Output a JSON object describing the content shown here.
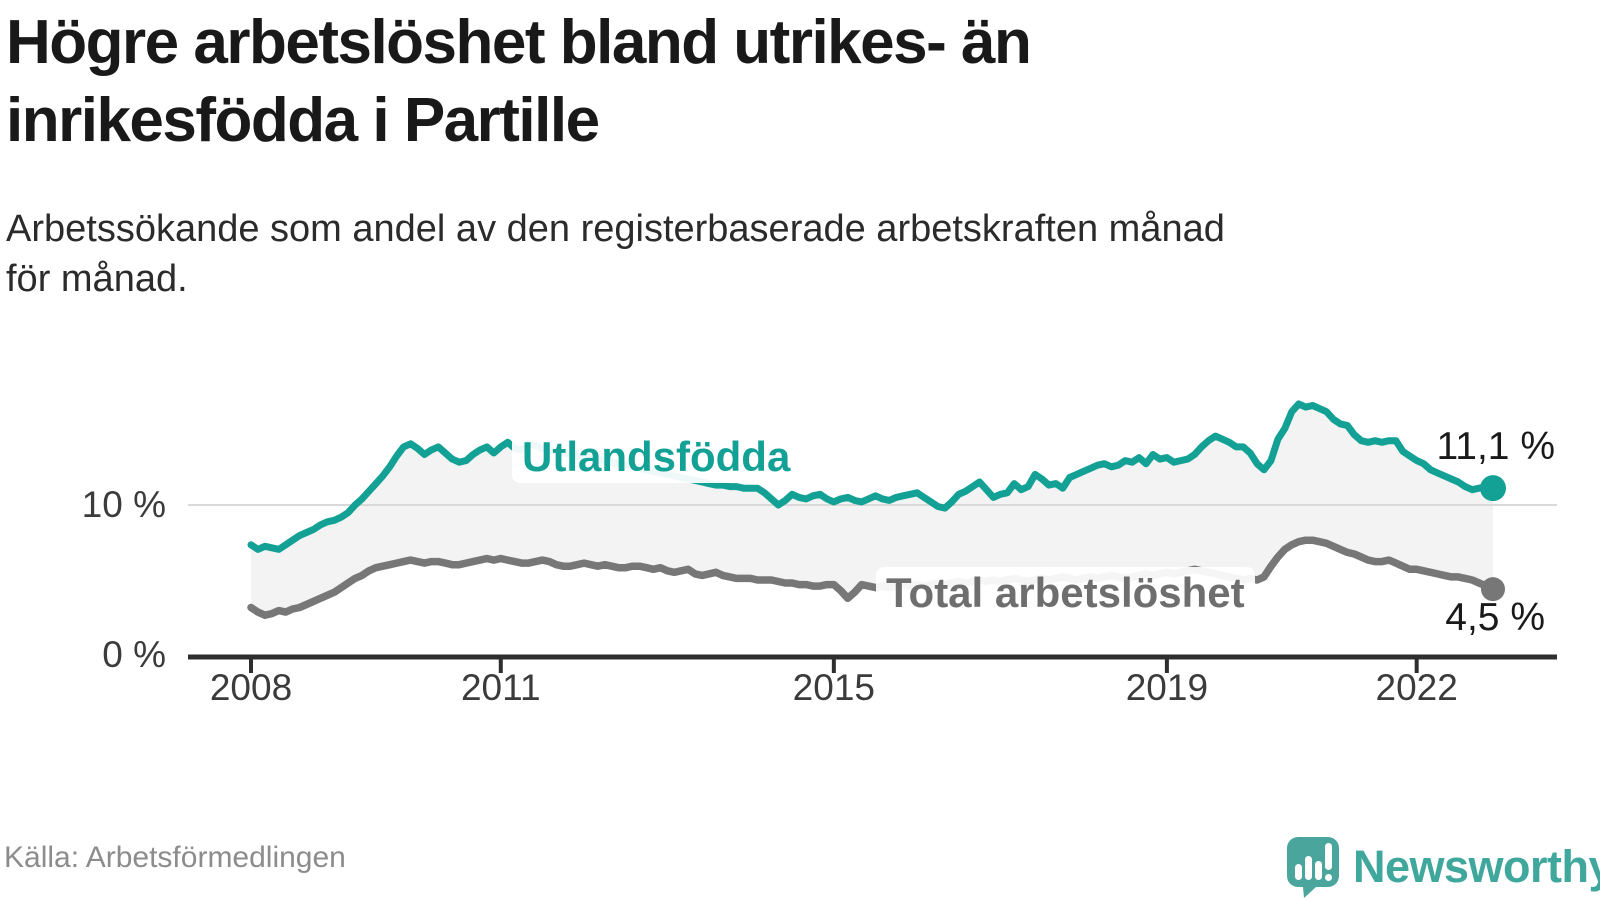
{
  "header": {
    "title_lines": [
      "Högre arbetslöshet bland utrikes- än",
      "inrikesfödda i Partille"
    ],
    "subtitle_lines": [
      "Arbetssökande som andel av den registerbaserade arbetskraften månad",
      "för månad."
    ]
  },
  "footer": {
    "source": "Källa: Arbetsförmedlingen",
    "brand": "Newsworthy"
  },
  "colors": {
    "teal_line": "#14a195",
    "gray_line": "#777777",
    "area_fill": "#f3f3f3",
    "gridline": "#d9d9d9",
    "axis": "#2e2e2e",
    "total_label": "#6e6e6e",
    "value_text": "#1a1a1a",
    "tick_text": "#3b3b3b",
    "source_text": "#8c8c8c",
    "brand_teal": "#3fa79c",
    "brand_icon": "#4aa69d"
  },
  "chart_data": {
    "type": "line",
    "title": "Högre arbetslöshet bland utrikes- än inrikesfödda i Partille",
    "subtitle": "Arbetssökande som andel av den registerbaserade arbetskraften månad för månad.",
    "unit": "percent",
    "x_unit": "month",
    "x_start": "2008-01",
    "x_end": "2022-12",
    "ylim": [
      0,
      17
    ],
    "grid": "single-line-at-10",
    "legend_position": "inline-labels",
    "y_ticks": [
      {
        "value": 10,
        "label": "10 %"
      },
      {
        "value": 0,
        "label": "0 %"
      }
    ],
    "x_ticks": [
      {
        "year": 2008,
        "label": "2008"
      },
      {
        "year": 2011,
        "label": "2011"
      },
      {
        "year": 2015,
        "label": "2015"
      },
      {
        "year": 2019,
        "label": "2019"
      },
      {
        "year": 2022,
        "label": "2022"
      }
    ],
    "series": [
      {
        "name": "Utlandsfödda",
        "color": "#14a195",
        "end_label": "11,1 %",
        "end_value": 11.1,
        "values": [
          7.4,
          7.1,
          7.3,
          7.2,
          7.1,
          7.4,
          7.7,
          8.0,
          8.2,
          8.4,
          8.7,
          8.9,
          9.0,
          9.2,
          9.5,
          10.0,
          10.4,
          10.9,
          11.4,
          11.9,
          12.5,
          13.2,
          13.8,
          14.0,
          13.7,
          13.3,
          13.6,
          13.8,
          13.4,
          13.0,
          12.8,
          12.9,
          13.3,
          13.6,
          13.8,
          13.4,
          13.8,
          14.1,
          13.7,
          13.6,
          14.0,
          13.9,
          13.7,
          13.6,
          13.5,
          13.4,
          13.3,
          13.2,
          13.2,
          13.1,
          13.0,
          12.9,
          12.8,
          12.7,
          12.6,
          12.5,
          12.4,
          12.3,
          12.2,
          12.1,
          12.0,
          11.9,
          11.8,
          11.7,
          11.6,
          11.5,
          11.4,
          11.3,
          11.3,
          11.2,
          11.2,
          11.1,
          11.1,
          11.1,
          10.8,
          10.4,
          10.0,
          10.3,
          10.7,
          10.5,
          10.4,
          10.6,
          10.7,
          10.4,
          10.2,
          10.4,
          10.5,
          10.3,
          10.2,
          10.4,
          10.6,
          10.4,
          10.3,
          10.5,
          10.6,
          10.7,
          10.8,
          10.5,
          10.2,
          9.9,
          9.8,
          10.2,
          10.7,
          10.9,
          11.2,
          11.5,
          11.0,
          10.5,
          10.7,
          10.8,
          11.4,
          11.0,
          11.2,
          12.0,
          11.7,
          11.3,
          11.4,
          11.1,
          11.8,
          12.0,
          12.2,
          12.4,
          12.6,
          12.7,
          12.5,
          12.6,
          12.9,
          12.8,
          13.1,
          12.7,
          13.3,
          13.0,
          13.1,
          12.8,
          12.9,
          13.0,
          13.3,
          13.8,
          14.2,
          14.5,
          14.3,
          14.1,
          13.8,
          13.8,
          13.4,
          12.7,
          12.3,
          12.9,
          14.3,
          15.0,
          16.1,
          16.6,
          16.4,
          16.5,
          16.3,
          16.1,
          15.6,
          15.3,
          15.2,
          14.6,
          14.2,
          14.1,
          14.2,
          14.1,
          14.2,
          14.2,
          13.5,
          13.2,
          12.9,
          12.7,
          12.3,
          12.1,
          11.9,
          11.7,
          11.5,
          11.2,
          11.0,
          11.1,
          11.2,
          11.1
        ]
      },
      {
        "name": "Total arbetslöshet",
        "color": "#777777",
        "end_label": "4,5 %",
        "end_value": 4.5,
        "values": [
          3.3,
          3.0,
          2.8,
          2.9,
          3.1,
          3.0,
          3.2,
          3.3,
          3.5,
          3.7,
          3.9,
          4.1,
          4.3,
          4.6,
          4.9,
          5.2,
          5.4,
          5.7,
          5.9,
          6.0,
          6.1,
          6.2,
          6.3,
          6.4,
          6.3,
          6.2,
          6.3,
          6.3,
          6.2,
          6.1,
          6.1,
          6.2,
          6.3,
          6.4,
          6.5,
          6.4,
          6.5,
          6.4,
          6.3,
          6.2,
          6.2,
          6.3,
          6.4,
          6.3,
          6.1,
          6.0,
          6.0,
          6.1,
          6.2,
          6.1,
          6.0,
          6.1,
          6.0,
          5.9,
          5.9,
          6.0,
          6.0,
          5.9,
          5.8,
          5.9,
          5.7,
          5.6,
          5.7,
          5.8,
          5.5,
          5.4,
          5.5,
          5.6,
          5.4,
          5.3,
          5.2,
          5.2,
          5.2,
          5.1,
          5.1,
          5.1,
          5.0,
          4.9,
          4.9,
          4.8,
          4.8,
          4.7,
          4.7,
          4.8,
          4.8,
          4.4,
          3.9,
          4.3,
          4.8,
          4.7,
          4.6,
          4.7,
          4.6,
          4.7,
          4.8,
          4.7,
          4.8,
          4.7,
          4.8,
          4.9,
          4.8,
          4.9,
          5.0,
          4.9,
          5.0,
          5.1,
          5.0,
          5.1,
          5.0,
          5.1,
          5.2,
          5.1,
          5.0,
          5.1,
          5.2,
          5.1,
          5.2,
          5.3,
          5.2,
          5.1,
          5.2,
          5.3,
          5.2,
          5.3,
          5.4,
          5.3,
          5.2,
          5.3,
          5.4,
          5.5,
          5.4,
          5.5,
          5.6,
          5.5,
          5.6,
          5.7,
          5.8,
          5.7,
          5.6,
          5.5,
          5.4,
          5.3,
          5.2,
          5.1,
          5.2,
          5.1,
          5.3,
          6.0,
          6.6,
          7.1,
          7.4,
          7.6,
          7.7,
          7.7,
          7.6,
          7.5,
          7.3,
          7.1,
          6.9,
          6.8,
          6.6,
          6.4,
          6.3,
          6.3,
          6.4,
          6.2,
          6.0,
          5.8,
          5.8,
          5.7,
          5.6,
          5.5,
          5.4,
          5.3,
          5.3,
          5.2,
          5.1,
          4.9,
          4.7,
          4.5
        ]
      }
    ]
  }
}
